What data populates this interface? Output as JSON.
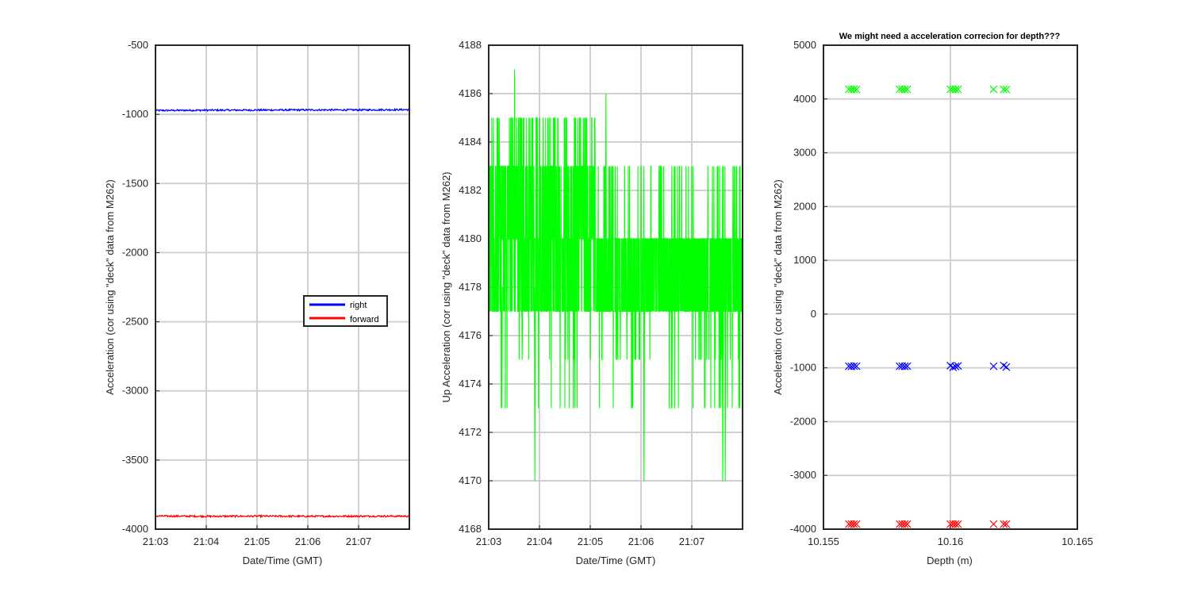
{
  "chart_data": [
    {
      "type": "line",
      "xlabel": "Date/Time (GMT)",
      "ylabel": "Acceleration (cor using \"deck\" data from M262)",
      "title": "",
      "ylim": [
        -4000,
        -500
      ],
      "xlim": [
        "21:03",
        "21:08"
      ],
      "x_ticks": [
        "21:03",
        "21:04",
        "21:05",
        "21:06",
        "21:07"
      ],
      "y_ticks": [
        -4000,
        -3500,
        -3000,
        -2500,
        -2000,
        -1500,
        -1000,
        -500
      ],
      "grid": true,
      "legend_position": "right-center",
      "series": [
        {
          "name": "right",
          "color": "#0000ff",
          "x": [
            "21:03",
            "21:04",
            "21:05",
            "21:06",
            "21:07",
            "21:08"
          ],
          "values": [
            -972,
            -970,
            -969,
            -968,
            -968,
            -966
          ]
        },
        {
          "name": "forward",
          "color": "#ff0000",
          "x": [
            "21:03",
            "21:04",
            "21:05",
            "21:06",
            "21:07",
            "21:08"
          ],
          "values": [
            -3905,
            -3907,
            -3906,
            -3907,
            -3906,
            -3906
          ]
        }
      ]
    },
    {
      "type": "line",
      "xlabel": "Date/Time (GMT)",
      "ylabel": "Up Acceleration (cor using \"deck\" data from M262)",
      "title": "",
      "ylim": [
        4168,
        4188
      ],
      "xlim": [
        "21:03",
        "21:08"
      ],
      "x_ticks": [
        "21:03",
        "21:04",
        "21:05",
        "21:06",
        "21:07"
      ],
      "y_ticks": [
        4168,
        4170,
        4172,
        4174,
        4176,
        4178,
        4180,
        4182,
        4184,
        4186,
        4188
      ],
      "grid": true,
      "series": [
        {
          "color": "#00ff00",
          "level_values": [
            4170,
            4173,
            4175,
            4177,
            4180,
            4183,
            4185,
            4186,
            4187
          ],
          "typical_range": [
            4177,
            4180
          ]
        }
      ]
    },
    {
      "type": "scatter",
      "title": "We might need a acceleration correcion for depth???",
      "xlabel": "Depth (m)",
      "ylabel": "Acceleration (cor using \"deck\" data from M262)",
      "xlim": [
        10.155,
        10.165
      ],
      "ylim": [
        -4000,
        5000
      ],
      "x_ticks": [
        "10.155",
        "10.16",
        "10.165"
      ],
      "y_ticks": [
        -4000,
        -3000,
        -2000,
        -1000,
        0,
        1000,
        2000,
        3000,
        4000,
        5000
      ],
      "grid": true,
      "series": [
        {
          "color": "#00ff00",
          "x": [
            10.156,
            10.1561,
            10.1562,
            10.1563,
            10.158,
            10.1581,
            10.1582,
            10.1583,
            10.16,
            10.1601,
            10.1602,
            10.1603,
            10.1617,
            10.1621,
            10.1622
          ],
          "y": [
            4180,
            4178,
            4180,
            4177,
            4180,
            4178,
            4177,
            4180,
            4180,
            4178,
            4177,
            4180,
            4180,
            4178,
            4177
          ]
        },
        {
          "color": "#0000ff",
          "x": [
            10.156,
            10.1561,
            10.1562,
            10.1563,
            10.158,
            10.1581,
            10.1582,
            10.1583,
            10.16,
            10.1601,
            10.1602,
            10.1603,
            10.1617,
            10.1621,
            10.1622
          ],
          "y": [
            -970,
            -972,
            -968,
            -970,
            -970,
            -968,
            -972,
            -970,
            -960,
            -990,
            -975,
            -965,
            -970,
            -955,
            -985
          ]
        },
        {
          "color": "#ff0000",
          "x": [
            10.156,
            10.1561,
            10.1562,
            10.1563,
            10.158,
            10.1581,
            10.1582,
            10.1583,
            10.16,
            10.1601,
            10.1602,
            10.1603,
            10.1617,
            10.1621,
            10.1622
          ],
          "y": [
            -3906,
            -3905,
            -3907,
            -3906,
            -3906,
            -3905,
            -3907,
            -3906,
            -3906,
            -3905,
            -3907,
            -3906,
            -3906,
            -3905,
            -3907
          ]
        }
      ]
    }
  ]
}
